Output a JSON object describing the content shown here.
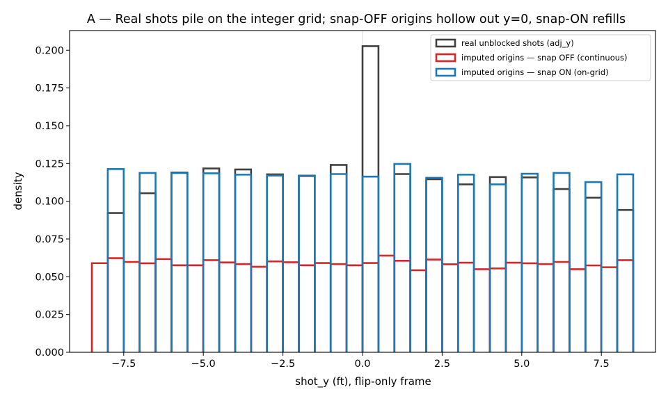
{
  "chart_data": {
    "type": "bar",
    "title": "A — Real shots pile on the integer grid; snap-OFF origins hollow out y=0, snap-ON refills",
    "xlabel": "shot_y (ft), flip-only frame",
    "ylabel": "density",
    "xlim": [
      -9.2,
      9.2
    ],
    "ylim": [
      0.0,
      0.213
    ],
    "x_ticks": [
      -7.5,
      -5.0,
      -2.5,
      0.0,
      2.5,
      5.0,
      7.5
    ],
    "x_tick_labels": [
      "−7.5",
      "−5.0",
      "−2.5",
      "0.0",
      "2.5",
      "5.0",
      "7.5"
    ],
    "y_ticks": [
      0.0,
      0.025,
      0.05,
      0.075,
      0.1,
      0.125,
      0.15,
      0.175,
      0.2
    ],
    "y_tick_labels": [
      "0.000",
      "0.025",
      "0.050",
      "0.075",
      "0.100",
      "0.125",
      "0.150",
      "0.175",
      "0.200"
    ],
    "vline_x": 0.0,
    "legend_position": "upper right",
    "histtype": "step",
    "series": [
      {
        "name": "real unblocked shots (adj_y)",
        "color": "#404040",
        "bins": [
          {
            "x0": -8.0,
            "x1": -7.5,
            "density": 0.0922
          },
          {
            "x0": -7.0,
            "x1": -6.5,
            "density": 0.1053
          },
          {
            "x0": -6.0,
            "x1": -5.5,
            "density": 0.119
          },
          {
            "x0": -5.0,
            "x1": -4.5,
            "density": 0.1217
          },
          {
            "x0": -4.0,
            "x1": -3.5,
            "density": 0.121
          },
          {
            "x0": -3.0,
            "x1": -2.5,
            "density": 0.1178
          },
          {
            "x0": -2.0,
            "x1": -1.5,
            "density": 0.1167
          },
          {
            "x0": -1.0,
            "x1": -0.5,
            "density": 0.124
          },
          {
            "x0": 0.0,
            "x1": 0.5,
            "density": 0.2027
          },
          {
            "x0": 1.0,
            "x1": 1.5,
            "density": 0.118
          },
          {
            "x0": 2.0,
            "x1": 2.5,
            "density": 0.1146
          },
          {
            "x0": 3.0,
            "x1": 3.5,
            "density": 0.1112
          },
          {
            "x0": 4.0,
            "x1": 4.5,
            "density": 0.116
          },
          {
            "x0": 5.0,
            "x1": 5.5,
            "density": 0.1158
          },
          {
            "x0": 6.0,
            "x1": 6.5,
            "density": 0.1081
          },
          {
            "x0": 7.0,
            "x1": 7.5,
            "density": 0.1024
          },
          {
            "x0": 8.0,
            "x1": 8.5,
            "density": 0.0942
          }
        ]
      },
      {
        "name": "imputed origins — snap OFF (continuous)",
        "color": "#d62728",
        "bins": [
          {
            "x0": -8.5,
            "x1": -8.0,
            "density": 0.059
          },
          {
            "x0": -8.0,
            "x1": -7.5,
            "density": 0.0623
          },
          {
            "x0": -7.5,
            "x1": -7.0,
            "density": 0.0598
          },
          {
            "x0": -7.0,
            "x1": -6.5,
            "density": 0.0589
          },
          {
            "x0": -6.5,
            "x1": -6.0,
            "density": 0.0617
          },
          {
            "x0": -6.0,
            "x1": -5.5,
            "density": 0.0576
          },
          {
            "x0": -5.5,
            "x1": -5.0,
            "density": 0.0576
          },
          {
            "x0": -5.0,
            "x1": -4.5,
            "density": 0.061
          },
          {
            "x0": -4.5,
            "x1": -4.0,
            "density": 0.0595
          },
          {
            "x0": -4.0,
            "x1": -3.5,
            "density": 0.0584
          },
          {
            "x0": -3.5,
            "x1": -3.0,
            "density": 0.0566
          },
          {
            "x0": -3.0,
            "x1": -2.5,
            "density": 0.0602
          },
          {
            "x0": -2.5,
            "x1": -2.0,
            "density": 0.0596
          },
          {
            "x0": -2.0,
            "x1": -1.5,
            "density": 0.0576
          },
          {
            "x0": -1.5,
            "x1": -1.0,
            "density": 0.0591
          },
          {
            "x0": -1.0,
            "x1": -0.5,
            "density": 0.0584
          },
          {
            "x0": -0.5,
            "x1": 0.0,
            "density": 0.0576
          },
          {
            "x0": 0.0,
            "x1": 0.5,
            "density": 0.0591
          },
          {
            "x0": 0.5,
            "x1": 1.0,
            "density": 0.064
          },
          {
            "x0": 1.0,
            "x1": 1.5,
            "density": 0.0606
          },
          {
            "x0": 1.5,
            "x1": 2.0,
            "density": 0.0543
          },
          {
            "x0": 2.0,
            "x1": 2.5,
            "density": 0.0614
          },
          {
            "x0": 2.5,
            "x1": 3.0,
            "density": 0.0583
          },
          {
            "x0": 3.0,
            "x1": 3.5,
            "density": 0.0593
          },
          {
            "x0": 3.5,
            "x1": 4.0,
            "density": 0.055
          },
          {
            "x0": 4.0,
            "x1": 4.5,
            "density": 0.0555
          },
          {
            "x0": 4.5,
            "x1": 5.0,
            "density": 0.0593
          },
          {
            "x0": 5.0,
            "x1": 5.5,
            "density": 0.0589
          },
          {
            "x0": 5.5,
            "x1": 6.0,
            "density": 0.0584
          },
          {
            "x0": 6.0,
            "x1": 6.5,
            "density": 0.0598
          },
          {
            "x0": 6.5,
            "x1": 7.0,
            "density": 0.055
          },
          {
            "x0": 7.0,
            "x1": 7.5,
            "density": 0.0575
          },
          {
            "x0": 7.5,
            "x1": 8.0,
            "density": 0.0563
          },
          {
            "x0": 8.0,
            "x1": 8.5,
            "density": 0.061
          }
        ]
      },
      {
        "name": "imputed origins — snap ON (on-grid)",
        "color": "#1f77b4",
        "bins": [
          {
            "x0": -8.0,
            "x1": -7.5,
            "density": 0.1213
          },
          {
            "x0": -7.0,
            "x1": -6.5,
            "density": 0.1187
          },
          {
            "x0": -6.0,
            "x1": -5.5,
            "density": 0.1187
          },
          {
            "x0": -5.0,
            "x1": -4.5,
            "density": 0.1185
          },
          {
            "x0": -4.0,
            "x1": -3.5,
            "density": 0.1176
          },
          {
            "x0": -3.0,
            "x1": -2.5,
            "density": 0.117
          },
          {
            "x0": -2.0,
            "x1": -1.5,
            "density": 0.117
          },
          {
            "x0": -1.0,
            "x1": -0.5,
            "density": 0.118
          },
          {
            "x0": 0.0,
            "x1": 0.5,
            "density": 0.1163
          },
          {
            "x0": 1.0,
            "x1": 1.5,
            "density": 0.1247
          },
          {
            "x0": 2.0,
            "x1": 2.5,
            "density": 0.1155
          },
          {
            "x0": 3.0,
            "x1": 3.5,
            "density": 0.1176
          },
          {
            "x0": 4.0,
            "x1": 4.5,
            "density": 0.1112
          },
          {
            "x0": 5.0,
            "x1": 5.5,
            "density": 0.1182
          },
          {
            "x0": 6.0,
            "x1": 6.5,
            "density": 0.1187
          },
          {
            "x0": 7.0,
            "x1": 7.5,
            "density": 0.1127
          },
          {
            "x0": 8.0,
            "x1": 8.5,
            "density": 0.1178
          }
        ]
      }
    ]
  }
}
